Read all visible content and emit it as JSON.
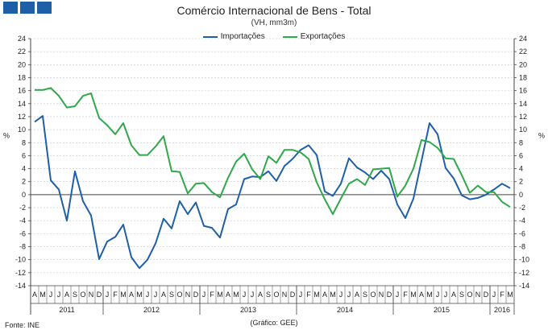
{
  "header": {
    "title": "Comércio Internacional de Bens - Total",
    "subtitle": "(VH, mm3m)"
  },
  "footer": {
    "source": "Fonte: INE",
    "chart_credit": "(Gráfico: GEE)"
  },
  "colors": {
    "logo": "#1f5fa8",
    "importacoes": "#1f5fa8",
    "exportacoes": "#2ea84a",
    "grid": "#c8c8c8",
    "axis": "#444444"
  },
  "chart_data": {
    "type": "line",
    "title": "Comércio Internacional de Bens - Total",
    "subtitle": "(VH, mm3m)",
    "ylabel": "%",
    "ylim": [
      -14,
      24
    ],
    "yticks": [
      -14,
      -12,
      -10,
      -8,
      -6,
      -4,
      -2,
      0,
      2,
      4,
      6,
      8,
      10,
      12,
      14,
      16,
      18,
      20,
      22,
      24
    ],
    "grid": true,
    "legend_position": "top-center",
    "x_month_labels": [
      "A",
      "M",
      "J",
      "J",
      "A",
      "S",
      "O",
      "N",
      "D",
      "J",
      "F",
      "M",
      "A",
      "M",
      "J",
      "J",
      "A",
      "S",
      "O",
      "N",
      "D",
      "J",
      "F",
      "M",
      "A",
      "M",
      "J",
      "J",
      "A",
      "S",
      "O",
      "N",
      "D",
      "J",
      "F",
      "M",
      "A",
      "M",
      "J",
      "J",
      "A",
      "S",
      "O",
      "N",
      "D",
      "J",
      "F",
      "M",
      "A",
      "M",
      "J",
      "J",
      "A",
      "S",
      "O",
      "N",
      "D",
      "J",
      "F",
      "M"
    ],
    "x_year_groups": [
      {
        "label": "2011",
        "start": 0,
        "count": 9
      },
      {
        "label": "2012",
        "start": 9,
        "count": 12
      },
      {
        "label": "2013",
        "start": 21,
        "count": 12
      },
      {
        "label": "2014",
        "start": 33,
        "count": 12
      },
      {
        "label": "2015",
        "start": 45,
        "count": 12
      },
      {
        "label": "2016",
        "start": 57,
        "count": 3
      }
    ],
    "series": [
      {
        "name": "Importações",
        "color": "#1f5fa8",
        "values": [
          11.2,
          12.1,
          2.2,
          0.8,
          -4.0,
          3.6,
          -1.0,
          -3.2,
          -9.9,
          -7.2,
          -6.5,
          -4.6,
          -9.6,
          -11.3,
          -10.0,
          -7.5,
          -3.7,
          -5.2,
          -1.0,
          -3.0,
          -1.2,
          -4.8,
          -5.1,
          -6.6,
          -2.2,
          -1.5,
          2.4,
          2.8,
          2.7,
          3.6,
          2.1,
          4.4,
          5.5,
          6.9,
          7.6,
          6.1,
          0.5,
          -0.2,
          1.7,
          5.6,
          4.2,
          3.4,
          2.4,
          3.7,
          2.4,
          -1.5,
          -3.6,
          -0.6,
          5.2,
          11.0,
          9.3,
          4.1,
          2.5,
          -0.1,
          -0.7,
          -0.5,
          0.0,
          0.8,
          1.7,
          1.0
        ]
      },
      {
        "name": "Exportações",
        "color": "#2ea84a",
        "values": [
          16.1,
          16.1,
          16.4,
          15.2,
          13.4,
          13.6,
          15.2,
          15.6,
          11.8,
          10.7,
          9.3,
          11.0,
          7.6,
          6.1,
          6.1,
          7.4,
          9.0,
          3.6,
          3.5,
          0.2,
          1.7,
          1.8,
          0.4,
          -0.4,
          2.6,
          5.1,
          6.3,
          3.9,
          2.4,
          5.9,
          4.9,
          6.9,
          6.9,
          6.5,
          5.5,
          1.9,
          -0.7,
          -3.0,
          -0.6,
          1.7,
          2.4,
          1.5,
          3.9,
          4.0,
          4.1,
          -0.3,
          1.4,
          4.0,
          8.4,
          8.1,
          7.2,
          5.6,
          5.5,
          3.0,
          0.3,
          1.4,
          0.4,
          0.4,
          -1.1,
          -1.9
        ]
      }
    ]
  }
}
